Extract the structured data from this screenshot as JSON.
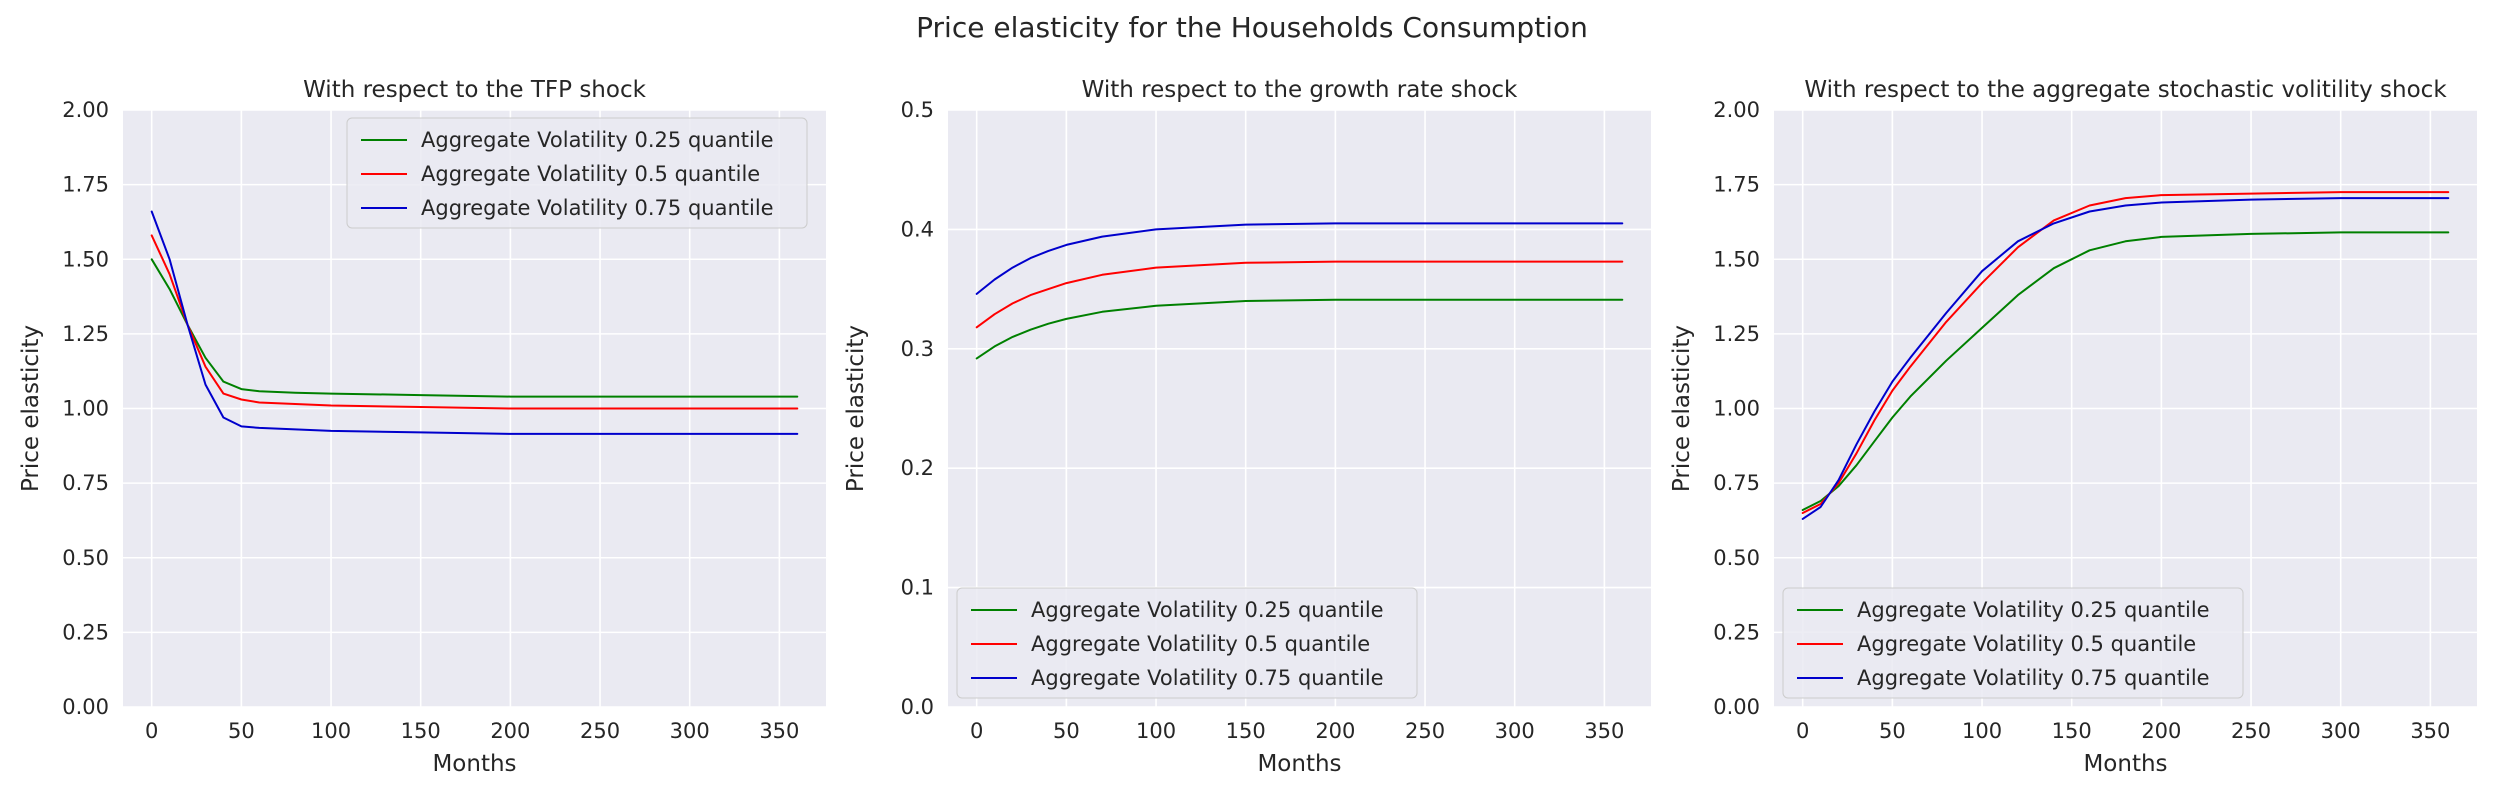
{
  "figure": {
    "title": "Price elasticity for the Households Consumption"
  },
  "chart_data": [
    {
      "type": "line",
      "title": "With respect to the TFP shock",
      "xlabel": "Months",
      "ylabel": "Price elasticity",
      "xlim": [
        -16,
        376
      ],
      "ylim": [
        0,
        2
      ],
      "xticks": [
        0,
        50,
        100,
        150,
        200,
        250,
        300,
        350
      ],
      "xtick_labels": [
        "0",
        "50",
        "100",
        "150",
        "200",
        "250",
        "300",
        "350"
      ],
      "yticks": [
        0,
        0.25,
        0.5,
        0.75,
        1.0,
        1.25,
        1.5,
        1.75,
        2.0
      ],
      "ytick_labels": [
        "0.00",
        "0.25",
        "0.50",
        "0.75",
        "1.00",
        "1.25",
        "1.50",
        "1.75",
        "2.00"
      ],
      "grid": true,
      "legend": "upper right",
      "series": [
        {
          "name": "Aggregate Volatility 0.25 quantile",
          "color": "#008000",
          "x": [
            0,
            10,
            20,
            30,
            40,
            50,
            60,
            80,
            100,
            150,
            200,
            250,
            300,
            360
          ],
          "y": [
            1.5,
            1.4,
            1.28,
            1.17,
            1.09,
            1.065,
            1.058,
            1.053,
            1.05,
            1.045,
            1.04,
            1.04,
            1.04,
            1.04
          ]
        },
        {
          "name": "Aggregate Volatility 0.5 quantile",
          "color": "#ff0000",
          "x": [
            0,
            10,
            20,
            30,
            40,
            50,
            60,
            80,
            100,
            150,
            200,
            250,
            300,
            360
          ],
          "y": [
            1.58,
            1.45,
            1.28,
            1.14,
            1.05,
            1.03,
            1.02,
            1.015,
            1.01,
            1.005,
            1.0,
            1.0,
            1.0,
            1.0
          ]
        },
        {
          "name": "Aggregate Volatility 0.75 quantile",
          "color": "#0000cc",
          "x": [
            0,
            10,
            20,
            30,
            40,
            50,
            60,
            80,
            100,
            150,
            200,
            250,
            300,
            360
          ],
          "y": [
            1.66,
            1.5,
            1.28,
            1.08,
            0.97,
            0.94,
            0.935,
            0.93,
            0.925,
            0.92,
            0.915,
            0.915,
            0.915,
            0.915
          ]
        }
      ]
    },
    {
      "type": "line",
      "title": "With respect to the growth rate shock",
      "xlabel": "Months",
      "ylabel": "Price elasticity",
      "xlim": [
        -16,
        376
      ],
      "ylim": [
        0,
        0.5
      ],
      "xticks": [
        0,
        50,
        100,
        150,
        200,
        250,
        300,
        350
      ],
      "xtick_labels": [
        "0",
        "50",
        "100",
        "150",
        "200",
        "250",
        "300",
        "350"
      ],
      "yticks": [
        0,
        0.1,
        0.2,
        0.3,
        0.4,
        0.5
      ],
      "ytick_labels": [
        "0.0",
        "0.1",
        "0.2",
        "0.3",
        "0.4",
        "0.5"
      ],
      "grid": true,
      "legend": "lower left",
      "series": [
        {
          "name": "Aggregate Volatility 0.25 quantile",
          "color": "#008000",
          "x": [
            0,
            10,
            20,
            30,
            40,
            50,
            70,
            100,
            150,
            200,
            250,
            300,
            360
          ],
          "y": [
            0.292,
            0.302,
            0.31,
            0.316,
            0.321,
            0.325,
            0.331,
            0.336,
            0.34,
            0.341,
            0.341,
            0.341,
            0.341
          ]
        },
        {
          "name": "Aggregate Volatility 0.5 quantile",
          "color": "#ff0000",
          "x": [
            0,
            10,
            20,
            30,
            40,
            50,
            70,
            100,
            150,
            200,
            250,
            300,
            360
          ],
          "y": [
            0.318,
            0.329,
            0.338,
            0.345,
            0.35,
            0.355,
            0.362,
            0.368,
            0.372,
            0.373,
            0.373,
            0.373,
            0.373
          ]
        },
        {
          "name": "Aggregate Volatility 0.75 quantile",
          "color": "#0000cc",
          "x": [
            0,
            10,
            20,
            30,
            40,
            50,
            70,
            100,
            150,
            200,
            250,
            300,
            360
          ],
          "y": [
            0.346,
            0.358,
            0.368,
            0.376,
            0.382,
            0.387,
            0.394,
            0.4,
            0.404,
            0.405,
            0.405,
            0.405,
            0.405
          ]
        }
      ]
    },
    {
      "type": "line",
      "title": "With respect to the aggregate stochastic volitility shock",
      "xlabel": "Months",
      "ylabel": "Price elasticity",
      "xlim": [
        -16,
        376
      ],
      "ylim": [
        0,
        2
      ],
      "xticks": [
        0,
        50,
        100,
        150,
        200,
        250,
        300,
        350
      ],
      "xtick_labels": [
        "0",
        "50",
        "100",
        "150",
        "200",
        "250",
        "300",
        "350"
      ],
      "yticks": [
        0,
        0.25,
        0.5,
        0.75,
        1.0,
        1.25,
        1.5,
        1.75,
        2.0
      ],
      "ytick_labels": [
        "0.00",
        "0.25",
        "0.50",
        "0.75",
        "1.00",
        "1.25",
        "1.50",
        "1.75",
        "2.00"
      ],
      "grid": true,
      "legend": "lower left",
      "series": [
        {
          "name": "Aggregate Volatility 0.25 quantile",
          "color": "#008000",
          "x": [
            0,
            10,
            20,
            30,
            40,
            50,
            60,
            80,
            100,
            120,
            140,
            160,
            180,
            200,
            250,
            300,
            360
          ],
          "y": [
            0.66,
            0.69,
            0.74,
            0.81,
            0.89,
            0.97,
            1.04,
            1.16,
            1.27,
            1.38,
            1.47,
            1.53,
            1.56,
            1.575,
            1.585,
            1.59,
            1.59
          ]
        },
        {
          "name": "Aggregate Volatility 0.5 quantile",
          "color": "#ff0000",
          "x": [
            0,
            10,
            20,
            30,
            40,
            50,
            60,
            80,
            100,
            120,
            140,
            160,
            180,
            200,
            250,
            300,
            360
          ],
          "y": [
            0.65,
            0.68,
            0.75,
            0.85,
            0.96,
            1.06,
            1.14,
            1.29,
            1.42,
            1.54,
            1.63,
            1.68,
            1.705,
            1.715,
            1.72,
            1.725,
            1.725
          ]
        },
        {
          "name": "Aggregate Volatility 0.75 quantile",
          "color": "#0000cc",
          "x": [
            0,
            10,
            20,
            30,
            40,
            50,
            60,
            80,
            100,
            120,
            140,
            160,
            180,
            200,
            250,
            300,
            360
          ],
          "y": [
            0.63,
            0.67,
            0.76,
            0.88,
            0.99,
            1.09,
            1.17,
            1.32,
            1.46,
            1.56,
            1.62,
            1.66,
            1.68,
            1.69,
            1.7,
            1.705,
            1.705
          ]
        }
      ]
    }
  ]
}
